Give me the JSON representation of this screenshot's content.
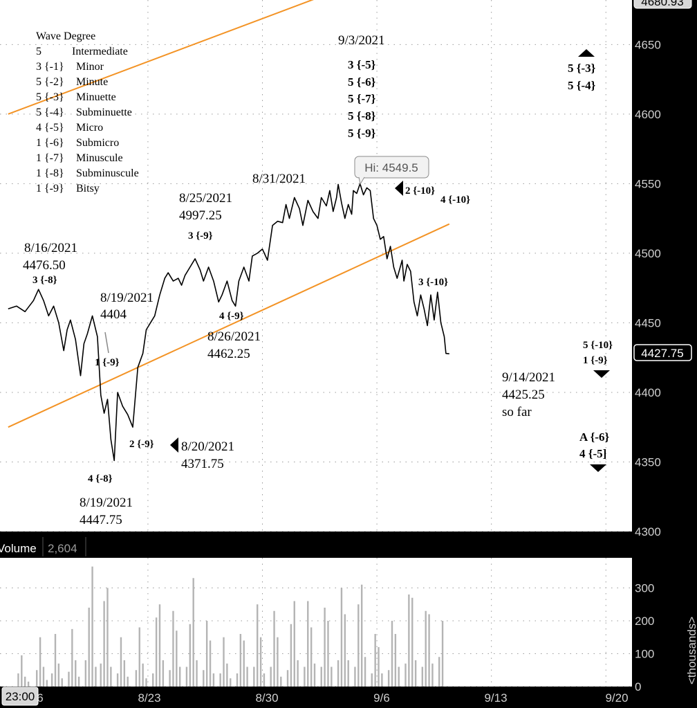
{
  "chart_data": {
    "type": "line",
    "price_pane": {
      "ylim": [
        4300,
        4682
      ],
      "yticks": [
        "4650",
        "4600",
        "4550",
        "4500",
        "4450",
        "4400",
        "4350",
        "4300"
      ],
      "top_price_box": "4680.93",
      "last_price_box": "4427.75",
      "hi_callout": "Hi: 4549.5",
      "series": [
        {
          "x": [
            -0.5,
            0,
            0.5,
            1,
            1.3,
            1.6,
            1.9,
            2.2,
            2.5,
            2.8,
            3,
            3.2,
            3.5,
            3.8,
            4,
            4.2,
            4.5,
            4.8,
            5,
            5.2,
            5.4,
            5.6,
            5.8,
            6,
            6.3,
            6.6,
            6.9,
            7.2,
            7.5,
            7.7,
            8,
            8.2,
            8.5,
            8.8,
            9,
            9.3,
            9.6,
            9.8,
            10,
            10.3,
            10.6,
            10.9,
            11.1,
            11.4,
            11.7,
            12,
            12.2,
            12.5,
            12.8,
            13,
            13.2,
            13.5,
            13.8,
            14,
            14.3,
            14.6,
            14.9,
            15.2,
            15.5,
            15.8,
            16,
            16.2,
            16.5,
            16.8,
            17,
            17.3,
            17.6,
            17.9,
            18.1,
            18.4,
            18.6,
            18.8,
            19,
            19.1,
            19.3,
            19.5,
            19.7,
            19.9,
            20,
            20.2,
            20.4,
            20.6,
            20.8,
            21,
            21.2,
            21.4,
            21.6,
            21.8,
            22,
            22.2,
            22.4,
            22.6,
            22.9,
            23,
            23.2,
            23.4,
            23.6,
            23.8,
            24,
            24.2,
            24.4,
            24.6,
            24.8,
            25,
            25.2,
            25.4,
            25.5,
            25.7
          ],
          "values": [
            4460,
            4462,
            4458,
            4466,
            4474,
            4466,
            4455,
            4462,
            4450,
            4430,
            4445,
            4452,
            4438,
            4412,
            4435,
            4442,
            4455,
            4440,
            4398,
            4385,
            4395,
            4366,
            4351,
            4400,
            4390,
            4384,
            4375,
            4418,
            4428,
            4445,
            4451,
            4455,
            4470,
            4482,
            4486,
            4480,
            4482,
            4477,
            4484,
            4490,
            4496,
            4488,
            4480,
            4490,
            4480,
            4465,
            4470,
            4480,
            4466,
            4462,
            4480,
            4490,
            4480,
            4498,
            4500,
            4503,
            4495,
            4520,
            4523,
            4522,
            4535,
            4525,
            4540,
            4532,
            4520,
            4538,
            4530,
            4525,
            4540,
            4534,
            4545,
            4530,
            4540,
            4549.5,
            4536,
            4525,
            4535,
            4528,
            4545,
            4543,
            4550,
            4542,
            4547,
            4545,
            4525,
            4520,
            4510,
            4512,
            4496,
            4505,
            4490,
            4482,
            4495,
            4480,
            4492,
            4487,
            4465,
            4455,
            4470,
            4460,
            4448,
            4470,
            4452,
            4472,
            4450,
            4440,
            4428,
            4427.75
          ]
        }
      ],
      "trendlines": [
        {
          "from": [
            -0.5,
            4600
          ],
          "to": [
            19.3,
            4690
          ]
        },
        {
          "from": [
            -0.5,
            4375
          ],
          "to": [
            25.7,
            4521
          ]
        }
      ]
    },
    "volume_pane": {
      "label": "Volume",
      "value": "2,604",
      "yticks": [
        "300",
        "200",
        "100",
        "0"
      ],
      "ylabel": "<thousands>",
      "series": [
        {
          "x": [
            0.1,
            0.3,
            0.5,
            0.7,
            1.2,
            1.4,
            1.6,
            1.8,
            2.1,
            2.3,
            2.5,
            2.7,
            3.1,
            3.3,
            3.5,
            3.7,
            4.1,
            4.3,
            4.5,
            4.7,
            5.0,
            5.2,
            5.4,
            5.6,
            6.0,
            6.2,
            6.4,
            6.6,
            7.1,
            7.3,
            7.5,
            7.7,
            8.1,
            8.3,
            8.5,
            8.7,
            9.1,
            9.3,
            9.5,
            9.7,
            10.1,
            10.3,
            10.5,
            10.7,
            11.1,
            11.3,
            11.5,
            11.7,
            12.1,
            12.3,
            12.5,
            12.7,
            13.1,
            13.3,
            13.5,
            13.7,
            14.1,
            14.3,
            14.5,
            14.7,
            15.1,
            15.3,
            15.5,
            15.7,
            16.1,
            16.3,
            16.5,
            16.7,
            17.1,
            17.3,
            17.5,
            17.7,
            18.1,
            18.3,
            18.5,
            18.7,
            19.1,
            19.3,
            19.5,
            19.7,
            20.1,
            20.3,
            20.5,
            20.7,
            21.1,
            21.3,
            21.5,
            21.7,
            22.1,
            22.3,
            22.5,
            22.7,
            23.1,
            23.3,
            23.5,
            23.7,
            24.1,
            24.3,
            24.5,
            24.7,
            25.1,
            25.3
          ],
          "values": [
            40,
            95,
            30,
            15,
            50,
            150,
            60,
            20,
            40,
            160,
            70,
            25,
            45,
            175,
            80,
            30,
            80,
            240,
            365,
            60,
            70,
            260,
            300,
            60,
            40,
            150,
            80,
            30,
            50,
            180,
            70,
            25,
            40,
            210,
            250,
            80,
            50,
            230,
            170,
            60,
            60,
            190,
            330,
            80,
            50,
            200,
            140,
            40,
            40,
            150,
            70,
            25,
            40,
            160,
            140,
            60,
            60,
            250,
            150,
            40,
            60,
            230,
            150,
            30,
            50,
            190,
            260,
            80,
            60,
            260,
            180,
            70,
            60,
            240,
            200,
            60,
            80,
            300,
            220,
            80,
            60,
            250,
            310,
            90,
            40,
            160,
            120,
            40,
            50,
            200,
            160,
            60,
            70,
            280,
            270,
            80,
            60,
            230,
            220,
            70,
            90,
            200
          ]
        }
      ]
    },
    "x_axis": {
      "tick_labels": [
        "6",
        "8/23",
        "8/30",
        "9/6",
        "9/13",
        "9/20"
      ],
      "time_box": "23:00"
    },
    "legend": {
      "title": "Wave Degree",
      "rows": [
        {
          "mark": "5",
          "name": "Intermediate"
        },
        {
          "mark": "3 {-1}",
          "name": "Minor"
        },
        {
          "mark": "5 {-2}",
          "name": "Minute"
        },
        {
          "mark": "5 {-3}",
          "name": "Minuette"
        },
        {
          "mark": "5 {-4}",
          "name": "Subminuette"
        },
        {
          "mark": "4 {-5}",
          "name": "Micro"
        },
        {
          "mark": "1 {-6}",
          "name": "Submicro"
        },
        {
          "mark": "1 {-7}",
          "name": "Minuscule"
        },
        {
          "mark": "1 {-8}",
          "name": "Subminuscule"
        },
        {
          "mark": "1 {-9}",
          "name": "Bitsy"
        }
      ]
    },
    "annotations": {
      "a_8_16_date": "8/16/2021",
      "a_8_16_price": "4476.50",
      "a_8_16_wave": "3 {-8}",
      "a_8_19_date": "8/19/2021",
      "a_8_19_price": "4404",
      "a_1_9": "1 {-9}",
      "a_4_8": "4 {-8}",
      "a_8_19b_date": "8/19/2021",
      "a_8_19b_price": "4447.75",
      "a_2_9": "2 {-9}",
      "a_8_20_date": "8/20/2021",
      "a_8_20_price": "4371.75",
      "a_8_25_date": "8/25/2021",
      "a_8_25_price": "4997.25",
      "a_3_9": "3 {-9}",
      "a_4_9": "4 {-9}",
      "a_8_26_date": "8/26/2021",
      "a_8_26_price": "4462.25",
      "a_8_31_date": "8/31/2021",
      "a_9_3_date": "9/3/2021",
      "a_9_3_waves": [
        "3 {-5}",
        "5 {-6}",
        "5 {-7}",
        "5 {-8}",
        "5 {-9}"
      ],
      "a_2_10": "2 {-10}",
      "a_4_10": "4 {-10}",
      "a_3_10": "3 {-10}",
      "a_9_14_date": "9/14/2021",
      "a_9_14_price": "4425.25",
      "a_9_14_note": "so far",
      "right_top": [
        "5 {-3}",
        "5 {-4}"
      ],
      "right_mid": [
        "5 {-10}",
        "1 {-9}"
      ],
      "right_bot": [
        "A {-6}",
        "4 {-5]"
      ]
    },
    "colors": {
      "price_line": "#000000",
      "trendline": "#f39325",
      "volume_bars": "#b4b4b4",
      "axis_bg": "#000000",
      "grid": "#9a9a9a"
    }
  }
}
